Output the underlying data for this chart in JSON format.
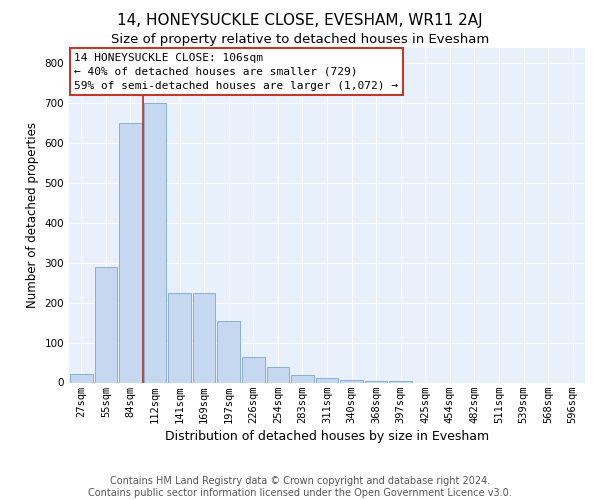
{
  "title": "14, HONEYSUCKLE CLOSE, EVESHAM, WR11 2AJ",
  "subtitle": "Size of property relative to detached houses in Evesham",
  "xlabel": "Distribution of detached houses by size in Evesham",
  "ylabel": "Number of detached properties",
  "bar_labels": [
    "27sqm",
    "55sqm",
    "84sqm",
    "112sqm",
    "141sqm",
    "169sqm",
    "197sqm",
    "226sqm",
    "254sqm",
    "283sqm",
    "311sqm",
    "340sqm",
    "368sqm",
    "397sqm",
    "425sqm",
    "454sqm",
    "482sqm",
    "511sqm",
    "539sqm",
    "568sqm",
    "596sqm"
  ],
  "bar_values": [
    22,
    290,
    650,
    700,
    225,
    225,
    155,
    65,
    40,
    20,
    12,
    7,
    5,
    3,
    0,
    0,
    0,
    0,
    0,
    0,
    0
  ],
  "bar_color": "#c5d8f0",
  "bar_edge_color": "#7aa8d0",
  "vline_color": "#c0392b",
  "annotation_text": "14 HONEYSUCKLE CLOSE: 106sqm\n← 40% of detached houses are smaller (729)\n59% of semi-detached houses are larger (1,072) →",
  "annotation_box_color": "white",
  "annotation_box_edge_color": "#c0392b",
  "ylim": [
    0,
    840
  ],
  "yticks": [
    0,
    100,
    200,
    300,
    400,
    500,
    600,
    700,
    800
  ],
  "background_color": "#e8f0fb",
  "footer_text": "Contains HM Land Registry data © Crown copyright and database right 2024.\nContains public sector information licensed under the Open Government Licence v3.0.",
  "title_fontsize": 11,
  "subtitle_fontsize": 9.5,
  "xlabel_fontsize": 9,
  "ylabel_fontsize": 8.5,
  "footer_fontsize": 7,
  "tick_fontsize": 7.5,
  "annot_fontsize": 8
}
